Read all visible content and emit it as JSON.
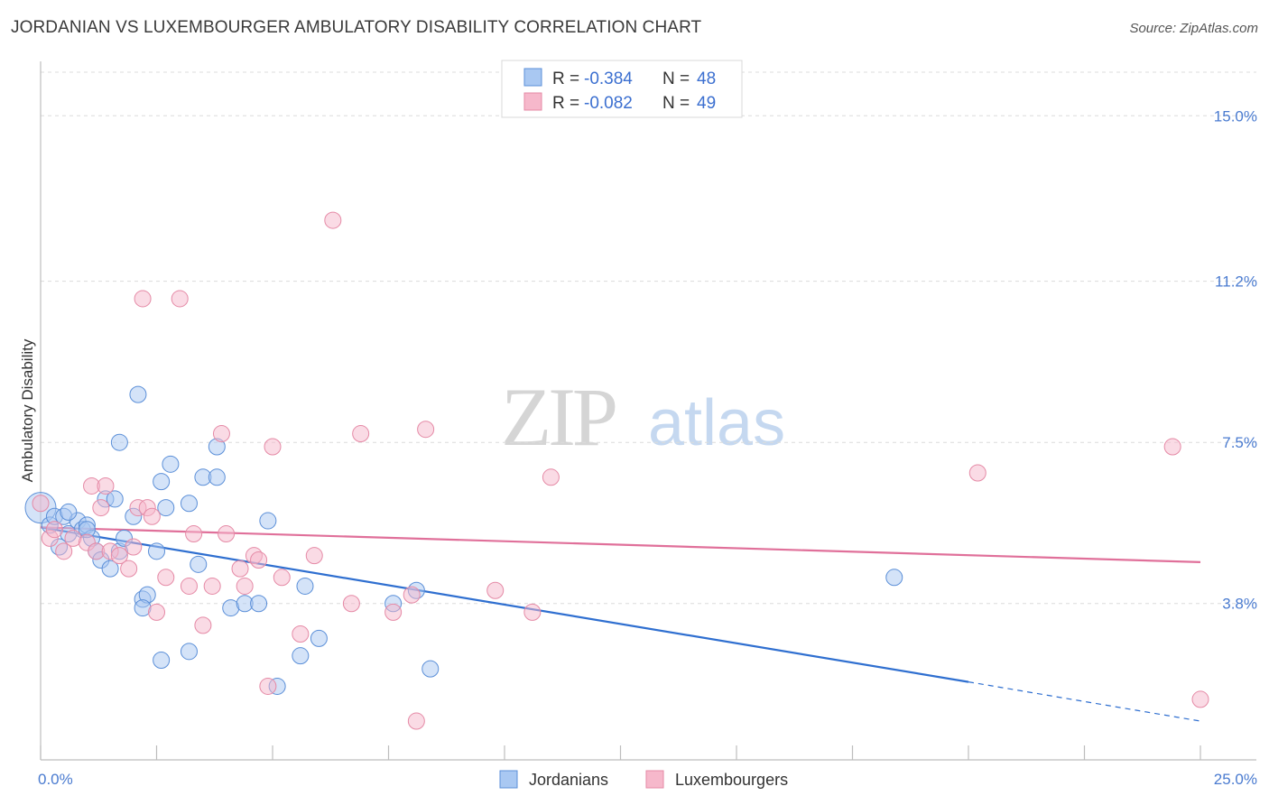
{
  "header": {
    "title": "JORDANIAN VS LUXEMBOURGER AMBULATORY DISABILITY CORRELATION CHART",
    "source": "Source: ZipAtlas.com"
  },
  "watermark": {
    "zip": "ZIP",
    "atlas": "atlas"
  },
  "legend": {
    "rows": [
      {
        "r_label": "R = ",
        "r_value": "-0.384",
        "n_label": "N = ",
        "n_value": "48",
        "color": "#a9c8f2"
      },
      {
        "r_label": "R = ",
        "r_value": "-0.082",
        "n_label": "N = ",
        "n_value": "49",
        "color": "#f6b8cb"
      }
    ]
  },
  "chart_data": {
    "type": "scatter",
    "title": "JORDANIAN VS LUXEMBOURGER AMBULATORY DISABILITY CORRELATION CHART",
    "xlabel": "",
    "ylabel": "Ambulatory Disability",
    "xlim": [
      0,
      25
    ],
    "ylim": [
      0.5,
      16.0
    ],
    "x_tick_labels": [
      "0.0%",
      "25.0%"
    ],
    "y_ticks": [
      3.8,
      7.5,
      11.2,
      15.0
    ],
    "y_tick_labels": [
      "3.8%",
      "7.5%",
      "11.2%",
      "15.0%"
    ],
    "grid": "horizontal-dashed",
    "legend_position": "top-center",
    "series": [
      {
        "name": "Jordanians",
        "color": "#a9c8f2",
        "stroke": "#5b8fd8",
        "trend_color": "#2f6fd0",
        "trend": {
          "x0": 0,
          "y0": 5.55,
          "x1": 20.0,
          "y1": 2.0,
          "dash_to_x": 25.0,
          "dash_to_y": 1.1
        },
        "points": [
          [
            0.0,
            6.0
          ],
          [
            0.2,
            5.6
          ],
          [
            0.3,
            5.8
          ],
          [
            0.4,
            5.1
          ],
          [
            0.5,
            5.8
          ],
          [
            0.6,
            5.4
          ],
          [
            0.8,
            5.7
          ],
          [
            0.9,
            5.5
          ],
          [
            1.0,
            5.6
          ],
          [
            1.1,
            5.3
          ],
          [
            1.2,
            5.0
          ],
          [
            1.3,
            4.8
          ],
          [
            1.4,
            6.2
          ],
          [
            1.5,
            4.6
          ],
          [
            1.7,
            5.0
          ],
          [
            1.8,
            5.3
          ],
          [
            2.0,
            5.8
          ],
          [
            2.2,
            3.9
          ],
          [
            2.3,
            4.0
          ],
          [
            2.5,
            5.0
          ],
          [
            2.6,
            6.6
          ],
          [
            2.7,
            6.0
          ],
          [
            2.8,
            7.0
          ],
          [
            3.2,
            6.1
          ],
          [
            3.4,
            4.7
          ],
          [
            3.5,
            6.7
          ],
          [
            3.8,
            6.7
          ],
          [
            4.1,
            3.7
          ],
          [
            4.4,
            3.8
          ],
          [
            4.7,
            3.8
          ],
          [
            4.9,
            5.7
          ],
          [
            5.1,
            1.9
          ],
          [
            5.6,
            2.6
          ],
          [
            5.7,
            4.2
          ],
          [
            6.0,
            3.0
          ],
          [
            7.6,
            3.8
          ],
          [
            8.1,
            4.1
          ],
          [
            8.4,
            2.3
          ],
          [
            2.1,
            8.6
          ],
          [
            1.7,
            7.5
          ],
          [
            3.8,
            7.4
          ],
          [
            2.6,
            2.5
          ],
          [
            3.2,
            2.7
          ],
          [
            2.2,
            3.7
          ],
          [
            1.6,
            6.2
          ],
          [
            0.6,
            5.9
          ],
          [
            1.0,
            5.5
          ],
          [
            18.4,
            4.4
          ]
        ]
      },
      {
        "name": "Luxembourgers",
        "color": "#f6b8cb",
        "stroke": "#e58aa6",
        "trend_color": "#e0709a",
        "trend": {
          "x0": 0,
          "y0": 5.55,
          "x1": 25.0,
          "y1": 4.75
        },
        "points": [
          [
            0.0,
            6.1
          ],
          [
            0.2,
            5.3
          ],
          [
            0.3,
            5.5
          ],
          [
            0.5,
            5.0
          ],
          [
            0.7,
            5.3
          ],
          [
            1.0,
            5.2
          ],
          [
            1.1,
            6.5
          ],
          [
            1.2,
            5.0
          ],
          [
            1.3,
            6.0
          ],
          [
            1.4,
            6.5
          ],
          [
            1.5,
            5.0
          ],
          [
            1.7,
            4.9
          ],
          [
            1.9,
            4.6
          ],
          [
            2.0,
            5.1
          ],
          [
            2.1,
            6.0
          ],
          [
            2.3,
            6.0
          ],
          [
            2.4,
            5.8
          ],
          [
            2.5,
            3.6
          ],
          [
            2.7,
            4.4
          ],
          [
            3.0,
            10.8
          ],
          [
            3.2,
            4.2
          ],
          [
            3.3,
            5.4
          ],
          [
            3.5,
            3.3
          ],
          [
            3.7,
            4.2
          ],
          [
            3.9,
            7.7
          ],
          [
            4.0,
            5.4
          ],
          [
            4.3,
            4.6
          ],
          [
            4.4,
            4.2
          ],
          [
            4.6,
            4.9
          ],
          [
            4.7,
            4.8
          ],
          [
            4.9,
            1.9
          ],
          [
            5.0,
            7.4
          ],
          [
            5.2,
            4.4
          ],
          [
            5.6,
            3.1
          ],
          [
            5.9,
            4.9
          ],
          [
            6.3,
            12.6
          ],
          [
            6.7,
            3.8
          ],
          [
            6.9,
            7.7
          ],
          [
            7.6,
            3.6
          ],
          [
            8.0,
            4.0
          ],
          [
            8.3,
            7.8
          ],
          [
            8.1,
            1.1
          ],
          [
            9.8,
            4.1
          ],
          [
            10.6,
            3.6
          ],
          [
            11.0,
            6.7
          ],
          [
            2.2,
            10.8
          ],
          [
            20.2,
            6.8
          ],
          [
            24.4,
            7.4
          ],
          [
            25.0,
            1.6
          ]
        ]
      }
    ]
  }
}
